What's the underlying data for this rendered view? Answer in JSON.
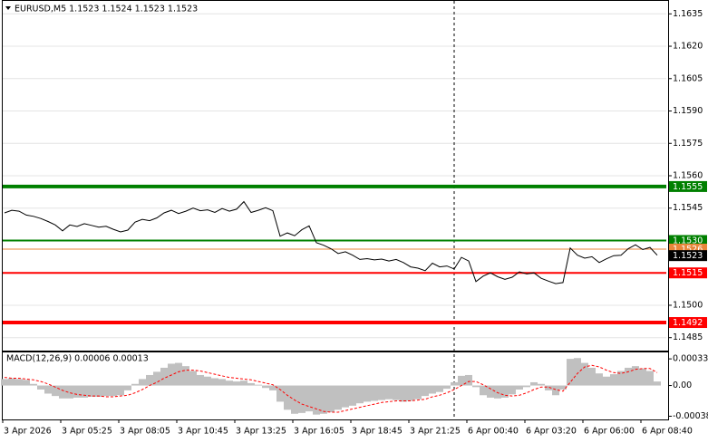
{
  "chart_data": [
    {
      "type": "line",
      "title": "EURUSD,M5  1.1523 1.1524 1.1523 1.1523",
      "xlim": [
        0,
        366
      ],
      "ylim": [
        1.1479,
        1.1641
      ],
      "yticks": [
        1.1635,
        {
          "value": 1.162,
          "label": "1.1620"
        },
        1.1605,
        {
          "value": 1.159,
          "label": "1.1590"
        },
        1.1575,
        {
          "value": 1.156,
          "label": "1.1560"
        },
        1.1545,
        {
          "value": 1.15,
          "label": "1.1500"
        },
        1.1485
      ],
      "grid": true,
      "x": [
        1,
        5,
        9,
        13,
        17,
        21,
        25,
        29,
        33,
        37,
        41,
        45,
        49,
        53,
        57,
        61,
        65,
        69,
        73,
        77,
        81,
        85,
        89,
        93,
        97,
        101,
        105,
        109,
        113,
        117,
        121,
        125,
        129,
        133,
        137,
        141,
        145,
        149,
        153,
        157,
        161,
        165,
        169,
        173,
        177,
        181,
        185,
        189,
        193,
        197,
        201,
        205,
        209,
        213,
        217,
        221,
        225,
        229,
        233,
        237,
        241,
        245,
        249,
        253,
        257,
        261,
        265,
        269,
        273,
        277,
        281,
        285,
        289,
        293,
        297,
        301,
        305,
        309,
        313,
        317,
        321,
        325,
        329,
        333,
        337,
        341,
        345,
        349,
        353,
        357,
        361
      ],
      "series": [
        {
          "name": "EURUSD",
          "color": "#000000",
          "values": [
            1.15428,
            1.1544,
            1.15436,
            1.15418,
            1.15412,
            1.15402,
            1.15388,
            1.15372,
            1.15345,
            1.15372,
            1.15365,
            1.15378,
            1.1537,
            1.15362,
            1.15366,
            1.15352,
            1.1534,
            1.15348,
            1.15385,
            1.15398,
            1.15392,
            1.15405,
            1.15428,
            1.1544,
            1.15425,
            1.15436,
            1.1545,
            1.15438,
            1.15442,
            1.1543,
            1.15448,
            1.15436,
            1.15445,
            1.1548,
            1.1543,
            1.1544,
            1.15452,
            1.15438,
            1.1532,
            1.15335,
            1.15322,
            1.1535,
            1.15368,
            1.1529,
            1.15278,
            1.15262,
            1.1524,
            1.15248,
            1.15232,
            1.15212,
            1.15216,
            1.1521,
            1.15214,
            1.15205,
            1.15212,
            1.15198,
            1.15178,
            1.15172,
            1.1516,
            1.15195,
            1.15178,
            1.15182,
            1.15168,
            1.15222,
            1.15205,
            1.1511,
            1.15135,
            1.1515,
            1.15132,
            1.1512,
            1.1513,
            1.15155,
            1.15145,
            1.1515,
            1.15125,
            1.15112,
            1.151,
            1.15105,
            1.15265,
            1.15232,
            1.15218,
            1.15225,
            1.15198,
            1.15215,
            1.1523,
            1.15232,
            1.15262,
            1.1528,
            1.15258,
            1.15268,
            1.15232
          ]
        }
      ],
      "levels": [
        {
          "value": 1.1555,
          "color": "#008000",
          "weight": "thick"
        },
        {
          "value": 1.153,
          "label": "1.1530",
          "color": "#008000",
          "weight": "thin"
        },
        {
          "value": 1.1526,
          "color": "#e8863a",
          "weight": "hairline"
        },
        {
          "value": 1.1515,
          "color": "#ff0000",
          "weight": "thin"
        },
        {
          "value": 1.1492,
          "color": "#ff0000",
          "weight": "thick"
        }
      ],
      "current_price": 1.1523
    },
    {
      "type": "macd",
      "title": "MACD(12,26,9) 0.00006 0.00013",
      "xlim": [
        0,
        366
      ],
      "ylim": [
        -0.00042,
        0.00041
      ],
      "yticks": [
        0.00033,
        {
          "value": 0,
          "label": "0.00"
        },
        -0.00038
      ],
      "xticks": [
        {
          "value": 0,
          "label": "3 Apr 2026"
        },
        {
          "value": 32,
          "label": "3 Apr 05:25"
        },
        {
          "value": 64,
          "label": "3 Apr 08:05"
        },
        {
          "value": 96,
          "label": "3 Apr 10:45"
        },
        {
          "value": 128,
          "label": "3 Apr 13:25"
        },
        {
          "value": 160,
          "label": "3 Apr 16:05"
        },
        {
          "value": 192,
          "label": "3 Apr 18:45"
        },
        {
          "value": 224,
          "label": "3 Apr 21:25"
        },
        {
          "value": 256,
          "label": "6 Apr 00:40"
        },
        {
          "value": 288,
          "label": "6 Apr 03:20"
        },
        {
          "value": 320,
          "label": "6 Apr 06:00"
        },
        {
          "value": 352,
          "label": "6 Apr 08:40"
        }
      ],
      "x": [
        1,
        5,
        9,
        13,
        17,
        21,
        25,
        29,
        33,
        37,
        41,
        45,
        49,
        53,
        57,
        61,
        65,
        69,
        73,
        77,
        81,
        85,
        89,
        93,
        97,
        101,
        105,
        109,
        113,
        117,
        121,
        125,
        129,
        133,
        137,
        141,
        145,
        149,
        153,
        157,
        161,
        165,
        169,
        173,
        177,
        181,
        185,
        189,
        193,
        197,
        201,
        205,
        209,
        213,
        217,
        221,
        225,
        229,
        233,
        237,
        241,
        245,
        249,
        253,
        257,
        261,
        265,
        269,
        273,
        277,
        281,
        285,
        289,
        293,
        297,
        301,
        305,
        309,
        313,
        317,
        321,
        325,
        329,
        333,
        337,
        341,
        345,
        349,
        353,
        357,
        361
      ],
      "series": [
        {
          "name": "MACD",
          "color": "#c0c0c0",
          "values": [
            8e-05,
            9e-05,
            8e-05,
            7e-05,
            2e-05,
            -5e-05,
            -0.0001,
            -0.00013,
            -0.00016,
            -0.00016,
            -0.00015,
            -0.00015,
            -0.00014,
            -0.00014,
            -0.00013,
            -0.00013,
            -0.00012,
            -6e-05,
            2e-05,
            8e-05,
            0.00013,
            0.00017,
            0.00022,
            0.00027,
            0.00028,
            0.00024,
            0.00018,
            0.00013,
            0.00011,
            9e-05,
            8e-05,
            6e-05,
            5e-05,
            6e-05,
            3e-05,
            1e-05,
            -3e-05,
            -6e-05,
            -0.0002,
            -0.0003,
            -0.00035,
            -0.00034,
            -0.00032,
            -0.00036,
            -0.00035,
            -0.00033,
            -0.0003,
            -0.00027,
            -0.00025,
            -0.00022,
            -0.0002,
            -0.00019,
            -0.00018,
            -0.00017,
            -0.00018,
            -0.0002,
            -0.00019,
            -0.00017,
            -0.00013,
            -0.0001,
            -8e-05,
            -4e-05,
            4e-05,
            0.00012,
            0.00013,
            -2e-05,
            -0.00012,
            -0.00015,
            -0.00016,
            -0.00015,
            -0.00011,
            -5e-05,
            -2e-05,
            4e-05,
            2e-05,
            -6e-05,
            -0.00012,
            -5e-05,
            0.00033,
            0.00034,
            0.00028,
            0.00022,
            0.00015,
            0.00011,
            0.00014,
            0.00018,
            0.00022,
            0.00024,
            0.00021,
            0.00018,
            5e-05
          ]
        },
        {
          "name": "Signal",
          "color": "#ff0000",
          "values": [
            0.0001,
            9e-05,
            9e-05,
            8e-05,
            7e-05,
            5e-05,
            2e-05,
            -2e-05,
            -6e-05,
            -9e-05,
            -0.00011,
            -0.00012,
            -0.00013,
            -0.00013,
            -0.00014,
            -0.00014,
            -0.00013,
            -0.00012,
            -9e-05,
            -5e-05,
            0,
            4e-05,
            9e-05,
            0.00013,
            0.00017,
            0.00019,
            0.00019,
            0.00018,
            0.00016,
            0.00014,
            0.00012,
            0.0001,
            9e-05,
            8e-05,
            7e-05,
            5e-05,
            3e-05,
            1e-05,
            -5e-05,
            -0.00012,
            -0.00018,
            -0.00023,
            -0.00026,
            -0.00029,
            -0.00032,
            -0.00033,
            -0.00033,
            -0.00031,
            -0.00029,
            -0.00027,
            -0.00025,
            -0.00023,
            -0.00021,
            -0.0002,
            -0.00019,
            -0.00019,
            -0.00019,
            -0.00018,
            -0.00017,
            -0.00014,
            -0.00012,
            -9e-05,
            -5e-05,
            0,
            5e-05,
            5e-05,
            1e-05,
            -4e-05,
            -9e-05,
            -0.00012,
            -0.00013,
            -0.00012,
            -9e-05,
            -5e-05,
            -2e-05,
            -2e-05,
            -5e-05,
            -7e-05,
            4e-05,
            0.00015,
            0.00023,
            0.00025,
            0.00023,
            0.00019,
            0.00016,
            0.00015,
            0.00017,
            0.0002,
            0.00021,
            0.00021,
            0.00016
          ]
        }
      ]
    }
  ]
}
